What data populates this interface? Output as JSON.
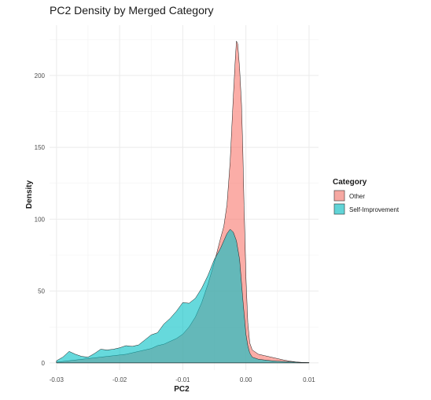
{
  "chart_data": {
    "type": "area",
    "title": "PC2 Density by Merged Category",
    "xlabel": "PC2",
    "ylabel": "Density",
    "xlim": [
      -0.0311,
      0.0115
    ],
    "ylim": [
      -5,
      235
    ],
    "x_ticks": [
      -0.03,
      -0.02,
      -0.01,
      0.0,
      0.01
    ],
    "x_tick_labels": [
      "-0.03",
      "-0.02",
      "-0.01",
      "0.00",
      "0.01"
    ],
    "y_ticks": [
      0,
      50,
      100,
      150,
      200
    ],
    "y_tick_labels": [
      "0",
      "50",
      "100",
      "150",
      "200"
    ],
    "grid": true,
    "legend": {
      "title": "Category",
      "position": "right"
    },
    "series": [
      {
        "name": "Other",
        "color": "#F8766D",
        "points": [
          [
            -0.03,
            0.5
          ],
          [
            -0.029,
            1.0
          ],
          [
            -0.028,
            1.5
          ],
          [
            -0.027,
            2.0
          ],
          [
            -0.026,
            2.5
          ],
          [
            -0.025,
            3.0
          ],
          [
            -0.024,
            3.5
          ],
          [
            -0.023,
            4.0
          ],
          [
            -0.022,
            4.5
          ],
          [
            -0.021,
            5.0
          ],
          [
            -0.02,
            5.5
          ],
          [
            -0.019,
            6.0
          ],
          [
            -0.018,
            7.0
          ],
          [
            -0.017,
            8.0
          ],
          [
            -0.016,
            9.0
          ],
          [
            -0.015,
            10.0
          ],
          [
            -0.014,
            12.0
          ],
          [
            -0.013,
            13.0
          ],
          [
            -0.012,
            15.0
          ],
          [
            -0.011,
            17.0
          ],
          [
            -0.01,
            20.0
          ],
          [
            -0.009,
            25.0
          ],
          [
            -0.008,
            32.0
          ],
          [
            -0.007,
            42.0
          ],
          [
            -0.006,
            55.0
          ],
          [
            -0.005,
            70.0
          ],
          [
            -0.004,
            87.0
          ],
          [
            -0.0035,
            95.0
          ],
          [
            -0.003,
            110.0
          ],
          [
            -0.0025,
            140.0
          ],
          [
            -0.002,
            185.0
          ],
          [
            -0.0017,
            210.0
          ],
          [
            -0.0015,
            224.0
          ],
          [
            -0.0013,
            222.0
          ],
          [
            -0.001,
            205.0
          ],
          [
            -0.0007,
            180.0
          ],
          [
            -0.0005,
            150.0
          ],
          [
            -0.0003,
            110.0
          ],
          [
            0.0,
            60.0
          ],
          [
            0.0003,
            28.0
          ],
          [
            0.0006,
            14.0
          ],
          [
            0.001,
            9.0
          ],
          [
            0.002,
            6.0
          ],
          [
            0.003,
            5.0
          ],
          [
            0.004,
            4.0
          ],
          [
            0.005,
            3.0
          ],
          [
            0.006,
            2.0
          ],
          [
            0.007,
            1.2
          ],
          [
            0.008,
            0.6
          ],
          [
            0.009,
            0.3
          ],
          [
            0.01,
            0.2
          ]
        ]
      },
      {
        "name": "Self-Improvement",
        "color": "#00BFC4",
        "points": [
          [
            -0.03,
            1.5
          ],
          [
            -0.029,
            4.0
          ],
          [
            -0.028,
            8.0
          ],
          [
            -0.027,
            6.0
          ],
          [
            -0.026,
            4.5
          ],
          [
            -0.025,
            4.0
          ],
          [
            -0.024,
            6.5
          ],
          [
            -0.023,
            9.5
          ],
          [
            -0.022,
            9.0
          ],
          [
            -0.021,
            9.5
          ],
          [
            -0.02,
            10.5
          ],
          [
            -0.019,
            12.0
          ],
          [
            -0.018,
            11.5
          ],
          [
            -0.017,
            12.5
          ],
          [
            -0.016,
            16.0
          ],
          [
            -0.015,
            19.5
          ],
          [
            -0.014,
            21.0
          ],
          [
            -0.013,
            27.0
          ],
          [
            -0.012,
            31.0
          ],
          [
            -0.011,
            36.0
          ],
          [
            -0.01,
            42.0
          ],
          [
            -0.009,
            41.5
          ],
          [
            -0.008,
            45.0
          ],
          [
            -0.007,
            52.0
          ],
          [
            -0.006,
            61.0
          ],
          [
            -0.005,
            72.0
          ],
          [
            -0.004,
            80.0
          ],
          [
            -0.003,
            90.0
          ],
          [
            -0.0025,
            93.0
          ],
          [
            -0.002,
            91.0
          ],
          [
            -0.0015,
            85.0
          ],
          [
            -0.001,
            72.0
          ],
          [
            -0.0005,
            45.0
          ],
          [
            0.0,
            20.0
          ],
          [
            0.0003,
            12.0
          ],
          [
            0.0006,
            7.0
          ],
          [
            0.001,
            4.0
          ],
          [
            0.002,
            2.5
          ],
          [
            0.003,
            2.0
          ],
          [
            0.004,
            1.5
          ],
          [
            0.005,
            1.2
          ],
          [
            0.006,
            1.0
          ],
          [
            0.007,
            0.8
          ],
          [
            0.008,
            0.5
          ],
          [
            0.009,
            0.3
          ],
          [
            0.01,
            0.2
          ]
        ]
      }
    ]
  }
}
